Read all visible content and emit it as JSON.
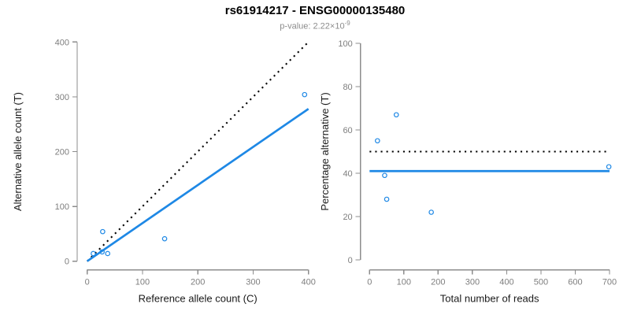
{
  "header": {
    "title": "rs61914217 - ENSG00000135480",
    "p_value_prefix": "p-value: 2.22×10",
    "p_value_exponent": "-9"
  },
  "colors": {
    "accent_blue": "#1E88E5",
    "identity_black": "#000000",
    "axis_gray": "#8c8c8c",
    "tick_label_gray": "#7e7e7e",
    "axis_label_black": "#1a1a1a"
  },
  "chart_data": [
    {
      "type": "scatter",
      "xlabel": "Reference allele count (C)",
      "ylabel": "Alternative allele count (T)",
      "xlim": [
        0,
        400
      ],
      "ylim": [
        0,
        400
      ],
      "xticks": [
        0,
        100,
        200,
        300,
        400
      ],
      "yticks": [
        0,
        100,
        200,
        300,
        400
      ],
      "grid": false,
      "points": [
        [
          11,
          14
        ],
        [
          27,
          17
        ],
        [
          37,
          14
        ],
        [
          28,
          54
        ],
        [
          140,
          41
        ],
        [
          393,
          304
        ]
      ],
      "lines": [
        {
          "name": "identity-line",
          "style": "dotted",
          "color_key": "identity_black",
          "x1": 0,
          "y1": 0,
          "x2": 400,
          "y2": 400
        },
        {
          "name": "regression-line",
          "style": "solid",
          "color_key": "accent_blue",
          "x1": 0,
          "y1": 0,
          "x2": 400,
          "y2": 278
        }
      ]
    },
    {
      "type": "scatter",
      "xlabel": "Total number of reads",
      "ylabel": "Percentage alternative (T)",
      "xlim": [
        0,
        700
      ],
      "ylim": [
        0,
        100
      ],
      "xticks": [
        0,
        100,
        200,
        300,
        400,
        500,
        600,
        700
      ],
      "yticks": [
        0,
        20,
        40,
        60,
        80,
        100
      ],
      "grid": false,
      "points": [
        [
          23,
          55
        ],
        [
          78,
          67
        ],
        [
          44,
          39
        ],
        [
          50,
          28
        ],
        [
          180,
          22
        ],
        [
          698,
          43
        ]
      ],
      "lines": [
        {
          "name": "expected-50pct-line",
          "style": "dotted",
          "color_key": "identity_black",
          "x1": 0,
          "y1": 50,
          "x2": 700,
          "y2": 50
        },
        {
          "name": "mean-41pct-line",
          "style": "solid",
          "color_key": "accent_blue",
          "x1": 0,
          "y1": 41,
          "x2": 700,
          "y2": 41
        }
      ]
    }
  ]
}
